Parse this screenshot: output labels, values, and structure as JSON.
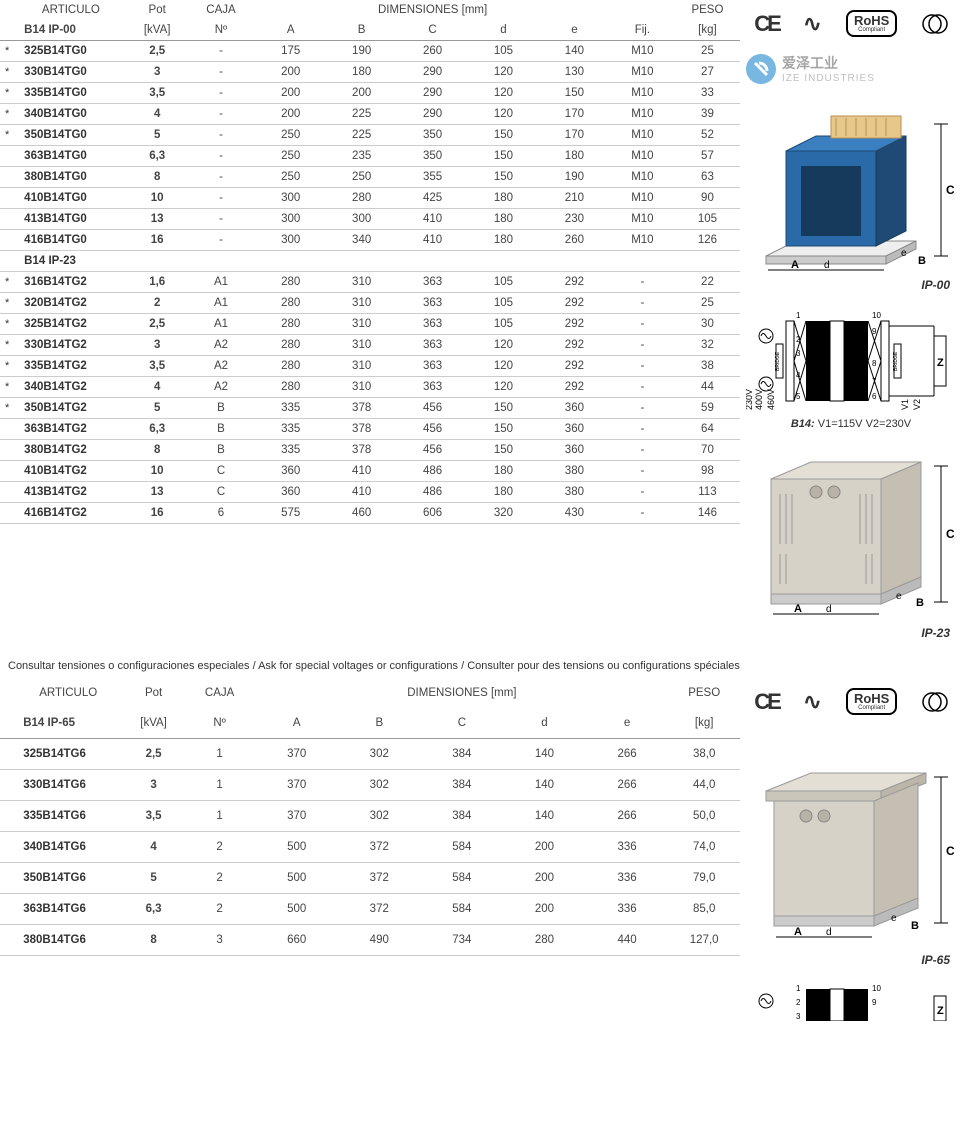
{
  "colors": {
    "rule": "#cccccc",
    "header_rule": "#999999",
    "text": "#333333",
    "transformer_body": "#2b6aa8",
    "transformer_dark": "#1e4a75",
    "enclosure_body": "#d6d2c8",
    "enclosure_shadow": "#b8b3a6",
    "watermark_blue": "#4a9fd8"
  },
  "compliance": {
    "ce": "CE",
    "ac": "∿",
    "rohs_line1": "RoHS",
    "rohs_line2": "Compliant"
  },
  "watermark": {
    "brand_cn": "爱泽工业",
    "brand_en": "IZE INDUSTRIES"
  },
  "table1": {
    "headers": {
      "articulo": "ARTICULO",
      "pot": "Pot",
      "caja": "CAJA",
      "dimensiones": "DIMENSIONES [mm]",
      "peso": "PESO",
      "sub_articulo_1": "B14  IP-00",
      "sub_pot": "[kVA]",
      "sub_caja": "Nº",
      "A": "A",
      "B": "B",
      "C": "C",
      "d": "d",
      "e": "e",
      "Fij": "Fij.",
      "sub_peso": "[kg]",
      "section2": "B14  IP-23"
    },
    "rows_ip00": [
      {
        "star": "*",
        "art": "325B14TG0",
        "pot": "2,5",
        "caja": "-",
        "A": "175",
        "B": "190",
        "C": "260",
        "d": "105",
        "e": "140",
        "fij": "M10",
        "peso": "25"
      },
      {
        "star": "*",
        "art": "330B14TG0",
        "pot": "3",
        "caja": "-",
        "A": "200",
        "B": "180",
        "C": "290",
        "d": "120",
        "e": "130",
        "fij": "M10",
        "peso": "27"
      },
      {
        "star": "*",
        "art": "335B14TG0",
        "pot": "3,5",
        "caja": "-",
        "A": "200",
        "B": "200",
        "C": "290",
        "d": "120",
        "e": "150",
        "fij": "M10",
        "peso": "33"
      },
      {
        "star": "*",
        "art": "340B14TG0",
        "pot": "4",
        "caja": "-",
        "A": "200",
        "B": "225",
        "C": "290",
        "d": "120",
        "e": "170",
        "fij": "M10",
        "peso": "39"
      },
      {
        "star": "*",
        "art": "350B14TG0",
        "pot": "5",
        "caja": "-",
        "A": "250",
        "B": "225",
        "C": "350",
        "d": "150",
        "e": "170",
        "fij": "M10",
        "peso": "52"
      },
      {
        "star": "",
        "art": "363B14TG0",
        "pot": "6,3",
        "caja": "-",
        "A": "250",
        "B": "235",
        "C": "350",
        "d": "150",
        "e": "180",
        "fij": "M10",
        "peso": "57"
      },
      {
        "star": "",
        "art": "380B14TG0",
        "pot": "8",
        "caja": "-",
        "A": "250",
        "B": "250",
        "C": "355",
        "d": "150",
        "e": "190",
        "fij": "M10",
        "peso": "63"
      },
      {
        "star": "",
        "art": "410B14TG0",
        "pot": "10",
        "caja": "-",
        "A": "300",
        "B": "280",
        "C": "425",
        "d": "180",
        "e": "210",
        "fij": "M10",
        "peso": "90"
      },
      {
        "star": "",
        "art": "413B14TG0",
        "pot": "13",
        "caja": "-",
        "A": "300",
        "B": "300",
        "C": "410",
        "d": "180",
        "e": "230",
        "fij": "M10",
        "peso": "105"
      },
      {
        "star": "",
        "art": "416B14TG0",
        "pot": "16",
        "caja": "-",
        "A": "300",
        "B": "340",
        "C": "410",
        "d": "180",
        "e": "260",
        "fij": "M10",
        "peso": "126"
      }
    ],
    "rows_ip23": [
      {
        "star": "*",
        "art": "316B14TG2",
        "pot": "1,6",
        "caja": "A1",
        "A": "280",
        "B": "310",
        "C": "363",
        "d": "105",
        "e": "292",
        "fij": "-",
        "peso": "22"
      },
      {
        "star": "*",
        "art": "320B14TG2",
        "pot": "2",
        "caja": "A1",
        "A": "280",
        "B": "310",
        "C": "363",
        "d": "105",
        "e": "292",
        "fij": "-",
        "peso": "25"
      },
      {
        "star": "*",
        "art": "325B14TG2",
        "pot": "2,5",
        "caja": "A1",
        "A": "280",
        "B": "310",
        "C": "363",
        "d": "105",
        "e": "292",
        "fij": "-",
        "peso": "30"
      },
      {
        "star": "*",
        "art": "330B14TG2",
        "pot": "3",
        "caja": "A2",
        "A": "280",
        "B": "310",
        "C": "363",
        "d": "120",
        "e": "292",
        "fij": "-",
        "peso": "32"
      },
      {
        "star": "*",
        "art": "335B14TG2",
        "pot": "3,5",
        "caja": "A2",
        "A": "280",
        "B": "310",
        "C": "363",
        "d": "120",
        "e": "292",
        "fij": "-",
        "peso": "38"
      },
      {
        "star": "*",
        "art": "340B14TG2",
        "pot": "4",
        "caja": "A2",
        "A": "280",
        "B": "310",
        "C": "363",
        "d": "120",
        "e": "292",
        "fij": "-",
        "peso": "44"
      },
      {
        "star": "*",
        "art": "350B14TG2",
        "pot": "5",
        "caja": "B",
        "A": "335",
        "B": "378",
        "C": "456",
        "d": "150",
        "e": "360",
        "fij": "-",
        "peso": "59"
      },
      {
        "star": "",
        "art": "363B14TG2",
        "pot": "6,3",
        "caja": "B",
        "A": "335",
        "B": "378",
        "C": "456",
        "d": "150",
        "e": "360",
        "fij": "-",
        "peso": "64"
      },
      {
        "star": "",
        "art": "380B14TG2",
        "pot": "8",
        "caja": "B",
        "A": "335",
        "B": "378",
        "C": "456",
        "d": "150",
        "e": "360",
        "fij": "-",
        "peso": "70"
      },
      {
        "star": "",
        "art": "410B14TG2",
        "pot": "10",
        "caja": "C",
        "A": "360",
        "B": "410",
        "C": "486",
        "d": "180",
        "e": "380",
        "fij": "-",
        "peso": "98"
      },
      {
        "star": "",
        "art": "413B14TG2",
        "pot": "13",
        "caja": "C",
        "A": "360",
        "B": "410",
        "C": "486",
        "d": "180",
        "e": "380",
        "fij": "-",
        "peso": "113"
      },
      {
        "star": "",
        "art": "416B14TG2",
        "pot": "16",
        "caja": "6",
        "A": "575",
        "B": "460",
        "C": "606",
        "d": "320",
        "e": "430",
        "fij": "-",
        "peso": "146"
      }
    ]
  },
  "note_text": "Consultar tensiones o configuraciones especiales / Ask for special voltages or configurations / Consulter pour des tensions ou configurations spéciales",
  "table2": {
    "headers": {
      "articulo": "ARTICULO",
      "pot": "Pot",
      "caja": "CAJA",
      "dimensiones": "DIMENSIONES [mm]",
      "peso": "PESO",
      "sub_articulo": "B14  IP-65",
      "sub_pot": "[kVA]",
      "sub_caja": "Nº",
      "A": "A",
      "B": "B",
      "C": "C",
      "d": "d",
      "e": "e",
      "sub_peso": "[kg]"
    },
    "rows": [
      {
        "art": "325B14TG6",
        "pot": "2,5",
        "caja": "1",
        "A": "370",
        "B": "302",
        "C": "384",
        "d": "140",
        "e": "266",
        "peso": "38,0"
      },
      {
        "art": "330B14TG6",
        "pot": "3",
        "caja": "1",
        "A": "370",
        "B": "302",
        "C": "384",
        "d": "140",
        "e": "266",
        "peso": "44,0"
      },
      {
        "art": "335B14TG6",
        "pot": "3,5",
        "caja": "1",
        "A": "370",
        "B": "302",
        "C": "384",
        "d": "140",
        "e": "266",
        "peso": "50,0"
      },
      {
        "art": "340B14TG6",
        "pot": "4",
        "caja": "2",
        "A": "500",
        "B": "372",
        "C": "584",
        "d": "200",
        "e": "336",
        "peso": "74,0"
      },
      {
        "art": "350B14TG6",
        "pot": "5",
        "caja": "2",
        "A": "500",
        "B": "372",
        "C": "584",
        "d": "200",
        "e": "336",
        "peso": "79,0"
      },
      {
        "art": "363B14TG6",
        "pot": "6,3",
        "caja": "2",
        "A": "500",
        "B": "372",
        "C": "584",
        "d": "200",
        "e": "336",
        "peso": "85,0"
      },
      {
        "art": "380B14TG6",
        "pot": "8",
        "caja": "3",
        "A": "660",
        "B": "490",
        "C": "734",
        "d": "280",
        "e": "440",
        "peso": "127,0"
      }
    ]
  },
  "figures": {
    "ip00_caption": "IP-00",
    "ip23_caption": "IP-23",
    "ip65_caption": "IP-65",
    "wiring_caption_prefix": "B14:",
    "wiring_caption_rest": " V1=115V  V2=230V",
    "dim_labels": {
      "A": "A",
      "B": "B",
      "C": "C",
      "d": "d",
      "e": "e"
    },
    "voltage_labels": [
      "230V",
      "400V",
      "460V",
      "V1",
      "V2"
    ],
    "pin_labels": [
      "1",
      "2",
      "3",
      "4",
      "5",
      "6",
      "7",
      "8",
      "9",
      "10"
    ]
  }
}
